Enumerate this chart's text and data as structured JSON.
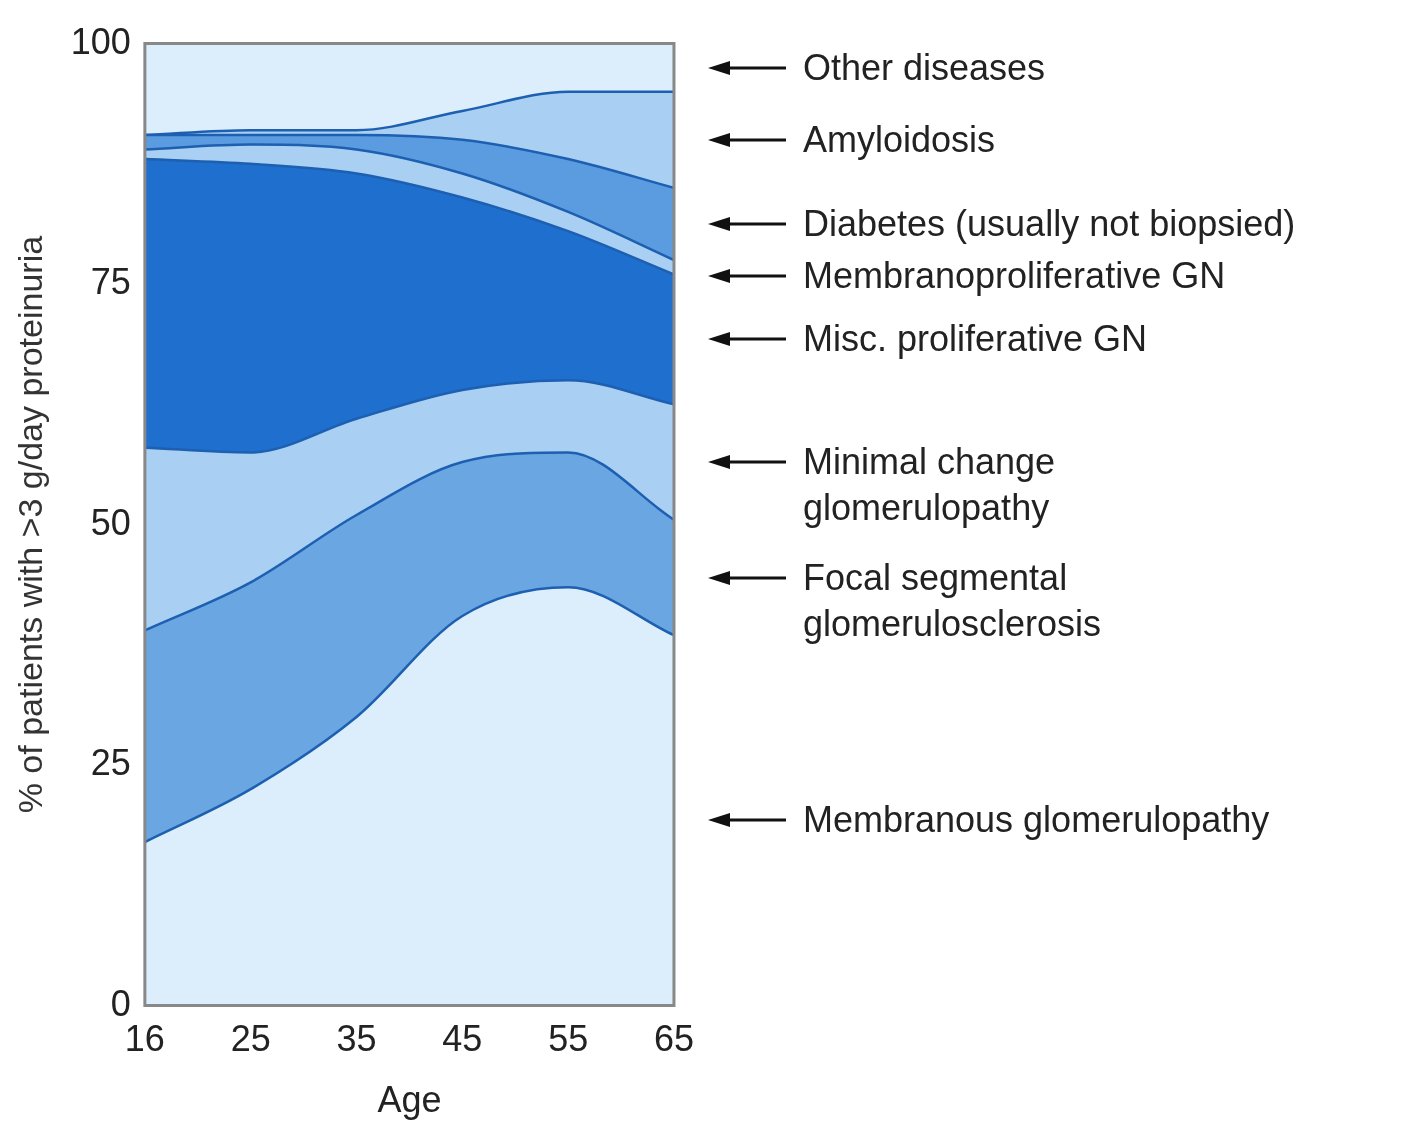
{
  "chart_data": {
    "type": "area",
    "stacked": true,
    "xlabel": "Age",
    "ylabel": "% of patients with >3 g/day proteinuria",
    "categories": [
      "16",
      "25",
      "35",
      "45",
      "55",
      "65"
    ],
    "ylim": [
      0,
      100
    ],
    "yticks": [
      0,
      25,
      50,
      75,
      100
    ],
    "legend": "right",
    "series": [
      {
        "name": "Membranous glomerulopathy",
        "color": "#dcedfb",
        "values": [
          17,
          22.5,
          30,
          40.5,
          43.5,
          38.5
        ]
      },
      {
        "name": "Focal segmental glomerulosclerosis",
        "color": "#6aa7e2",
        "values": [
          22,
          21.5,
          21,
          16,
          14,
          12
        ]
      },
      {
        "name": "Minimal change glomerulopathy",
        "color": "#a9cff3",
        "values": [
          19,
          13.5,
          10,
          7.5,
          7.5,
          12
        ]
      },
      {
        "name": "Misc. proliferative GN",
        "color": "#1f6fcf",
        "values": [
          30,
          30,
          25.5,
          20,
          15.5,
          13.5
        ]
      },
      {
        "name": "Membranoproliferative GN",
        "color": "#a9cff3",
        "values": [
          1,
          2,
          2.5,
          2.5,
          2,
          1.5
        ]
      },
      {
        "name": "Diabetes (usually not biopsied)",
        "color": "#5b9be0",
        "values": [
          1.5,
          1,
          1.5,
          3.5,
          5.5,
          7.5
        ]
      },
      {
        "name": "Amyloidosis",
        "color": "#a9cff3",
        "values": [
          0,
          0.5,
          0.5,
          3,
          7,
          10
        ]
      },
      {
        "name": "Other diseases",
        "color": "#dcedfb",
        "values": [
          9.5,
          9,
          9,
          7,
          5,
          5
        ]
      }
    ]
  }
}
